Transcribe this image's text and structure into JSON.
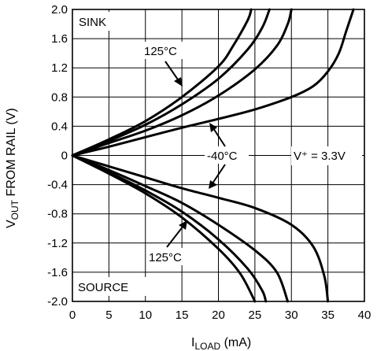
{
  "chart_data": {
    "type": "line",
    "title": "",
    "xlabel": {
      "main": "I",
      "sub": "LOAD",
      "unit": " (mA)"
    },
    "ylabel": {
      "main": "V",
      "sub": "OUT",
      "rest": " FROM RAIL (V)"
    },
    "xlim": [
      0,
      40
    ],
    "ylim": [
      -2.0,
      2.0
    ],
    "x_ticks": [
      "0",
      "5",
      "10",
      "15",
      "20",
      "25",
      "30",
      "35",
      "40"
    ],
    "y_ticks": [
      "-2.0",
      "-1.6",
      "-1.2",
      "-0.8",
      "-0.4",
      "0",
      "0.4",
      "0.8",
      "1.2",
      "1.6",
      "2.0"
    ],
    "grid": true,
    "annotations": {
      "sink": "SINK",
      "source": "SOURCE",
      "t_hot_sink": "125°C",
      "t_cold": "-40°C",
      "t_hot_source": "125°C",
      "supply": "V⁺ = 3.3V"
    },
    "series": [
      {
        "region": "sink",
        "points": [
          [
            0,
            0
          ],
          [
            5,
            0.22
          ],
          [
            10,
            0.47
          ],
          [
            15,
            0.8
          ],
          [
            20,
            1.22
          ],
          [
            22,
            1.5
          ],
          [
            24,
            1.85
          ],
          [
            24.5,
            2.0
          ]
        ]
      },
      {
        "region": "sink",
        "points": [
          [
            0,
            0
          ],
          [
            5,
            0.2
          ],
          [
            10,
            0.42
          ],
          [
            15,
            0.7
          ],
          [
            20,
            1.05
          ],
          [
            24,
            1.45
          ],
          [
            26,
            1.75
          ],
          [
            27,
            2.0
          ]
        ]
      },
      {
        "region": "sink",
        "points": [
          [
            0,
            0
          ],
          [
            5,
            0.17
          ],
          [
            10,
            0.34
          ],
          [
            15,
            0.55
          ],
          [
            20,
            0.82
          ],
          [
            25,
            1.18
          ],
          [
            28,
            1.5
          ],
          [
            29.5,
            1.8
          ],
          [
            30,
            2.0
          ]
        ]
      },
      {
        "region": "sink",
        "points": [
          [
            0,
            0
          ],
          [
            5,
            0.12
          ],
          [
            10,
            0.25
          ],
          [
            15,
            0.38
          ],
          [
            20,
            0.5
          ],
          [
            25,
            0.63
          ],
          [
            30,
            0.8
          ],
          [
            33,
            0.95
          ],
          [
            35,
            1.15
          ],
          [
            36.5,
            1.4
          ],
          [
            37.5,
            1.7
          ],
          [
            38.5,
            2.0
          ]
        ]
      },
      {
        "region": "source",
        "points": [
          [
            0,
            0
          ],
          [
            5,
            -0.25
          ],
          [
            10,
            -0.52
          ],
          [
            15,
            -0.85
          ],
          [
            20,
            -1.28
          ],
          [
            23,
            -1.62
          ],
          [
            25,
            -2.0
          ]
        ]
      },
      {
        "region": "source",
        "points": [
          [
            0,
            0
          ],
          [
            5,
            -0.23
          ],
          [
            10,
            -0.48
          ],
          [
            15,
            -0.77
          ],
          [
            20,
            -1.15
          ],
          [
            24,
            -1.55
          ],
          [
            26,
            -1.85
          ],
          [
            26.5,
            -2.0
          ]
        ]
      },
      {
        "region": "source",
        "points": [
          [
            0,
            0
          ],
          [
            5,
            -0.2
          ],
          [
            10,
            -0.42
          ],
          [
            15,
            -0.65
          ],
          [
            20,
            -0.95
          ],
          [
            25,
            -1.3
          ],
          [
            28,
            -1.6
          ],
          [
            29.5,
            -2.0
          ]
        ]
      },
      {
        "region": "source",
        "points": [
          [
            0,
            0
          ],
          [
            5,
            -0.15
          ],
          [
            10,
            -0.3
          ],
          [
            15,
            -0.45
          ],
          [
            20,
            -0.58
          ],
          [
            25,
            -0.72
          ],
          [
            30,
            -0.95
          ],
          [
            33,
            -1.25
          ],
          [
            34.5,
            -1.65
          ],
          [
            35,
            -2.0
          ]
        ]
      }
    ]
  }
}
